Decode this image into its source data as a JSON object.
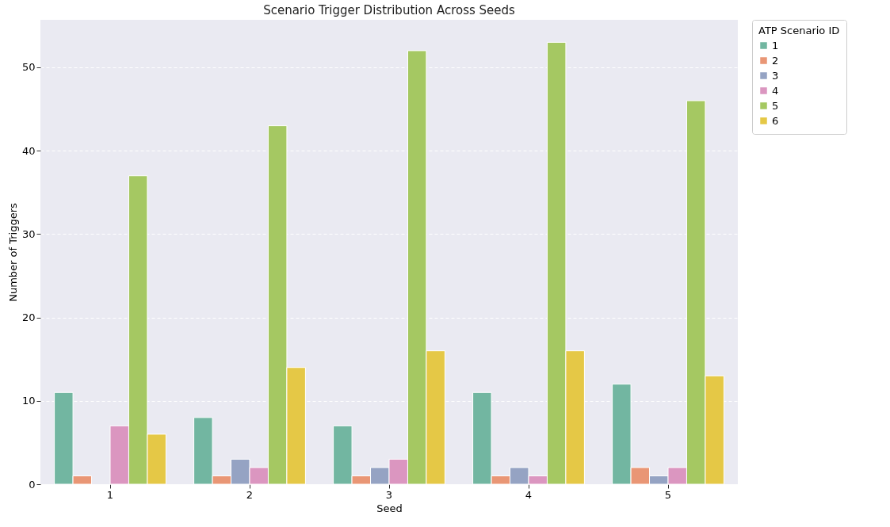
{
  "chart_data": {
    "type": "bar",
    "title": "Scenario Trigger Distribution Across Seeds",
    "xlabel": "Seed",
    "ylabel": "Number of Triggers",
    "legend_title": "ATP Scenario ID",
    "categories": [
      "1",
      "2",
      "3",
      "4",
      "5"
    ],
    "series": [
      {
        "name": "1",
        "color": "#72b6a1",
        "values": [
          11,
          8,
          7,
          11,
          12
        ]
      },
      {
        "name": "2",
        "color": "#e99675",
        "values": [
          1,
          1,
          1,
          1,
          2
        ]
      },
      {
        "name": "3",
        "color": "#95a3c3",
        "values": [
          0,
          3,
          2,
          2,
          1
        ]
      },
      {
        "name": "4",
        "color": "#db96c0",
        "values": [
          7,
          2,
          3,
          1,
          2
        ]
      },
      {
        "name": "5",
        "color": "#a5c862",
        "values": [
          37,
          43,
          52,
          53,
          46
        ]
      },
      {
        "name": "6",
        "color": "#e5c846",
        "values": [
          6,
          14,
          16,
          16,
          13
        ]
      }
    ],
    "ylim": [
      0,
      55.7
    ],
    "yticks": [
      0,
      10,
      20,
      30,
      40,
      50
    ],
    "grid": "y",
    "legend": "top right"
  }
}
